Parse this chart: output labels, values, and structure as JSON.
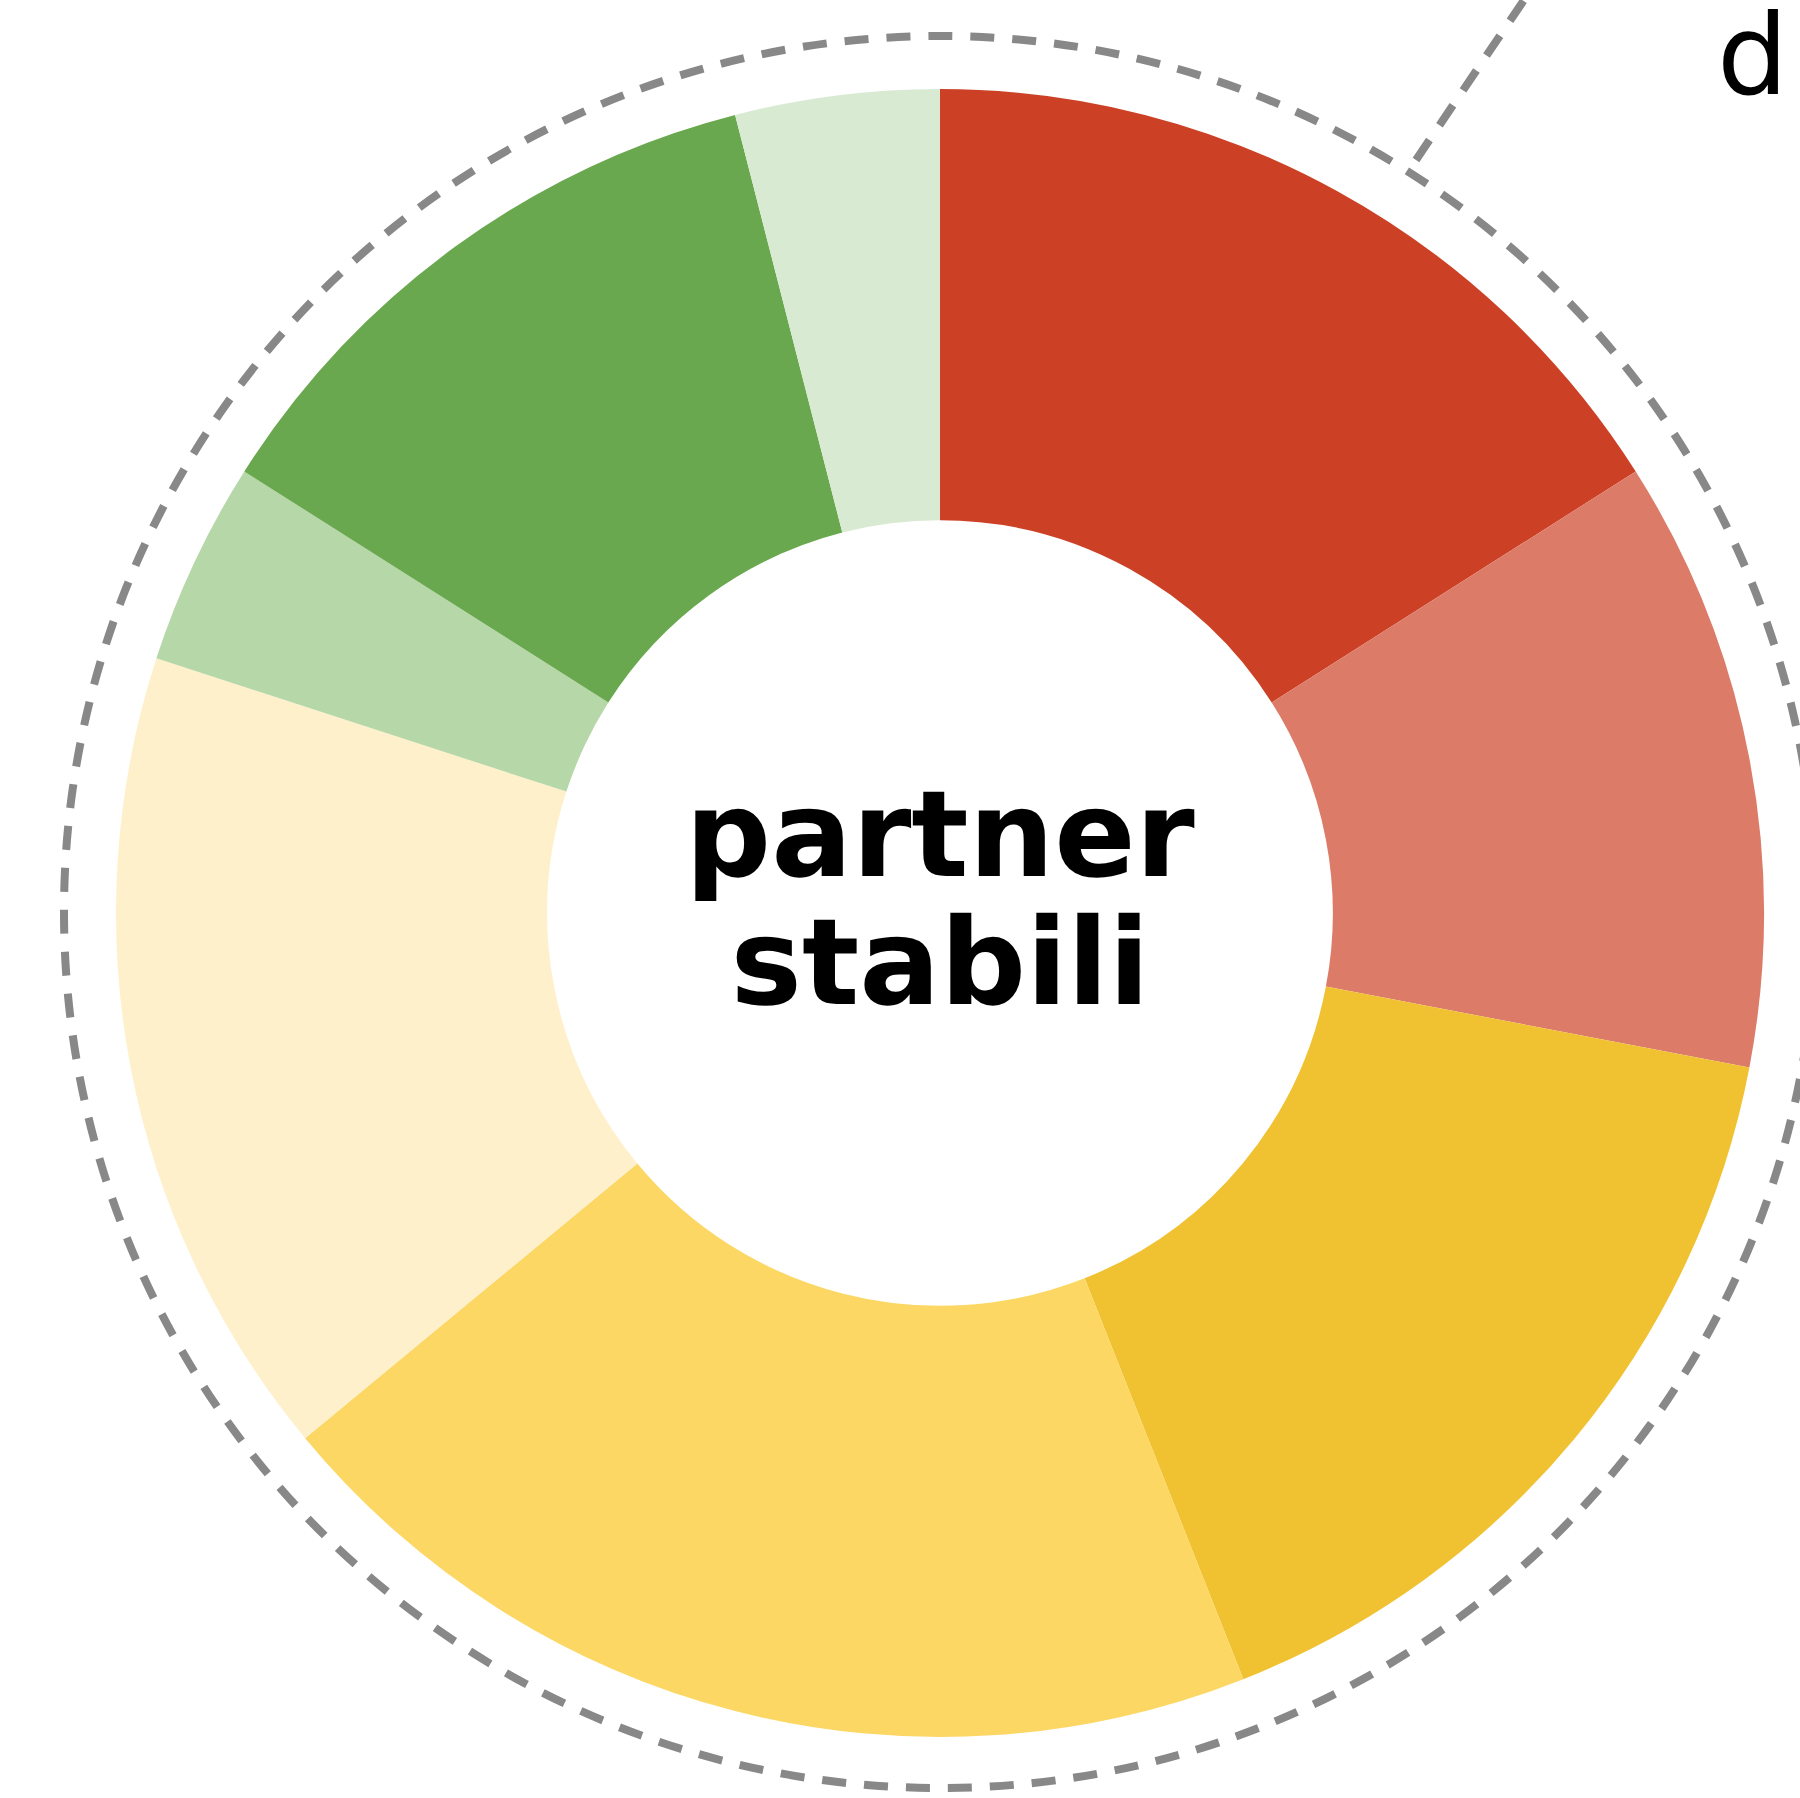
{
  "chart_data": {
    "type": "donut",
    "title": "partner stabili",
    "categories": [
      null,
      null,
      null,
      null,
      null,
      null,
      null,
      null
    ],
    "values": [
      16,
      12,
      16,
      20,
      16,
      4,
      12,
      4
    ],
    "colors": [
      "#cc4125",
      "#dd7b69",
      "#f0c232",
      "#fcd764",
      "#fff0cc",
      "#b6d7a8",
      "#6aa84f",
      "#d9ead3"
    ],
    "annotations": [
      "d"
    ],
    "legend": false
  }
}
